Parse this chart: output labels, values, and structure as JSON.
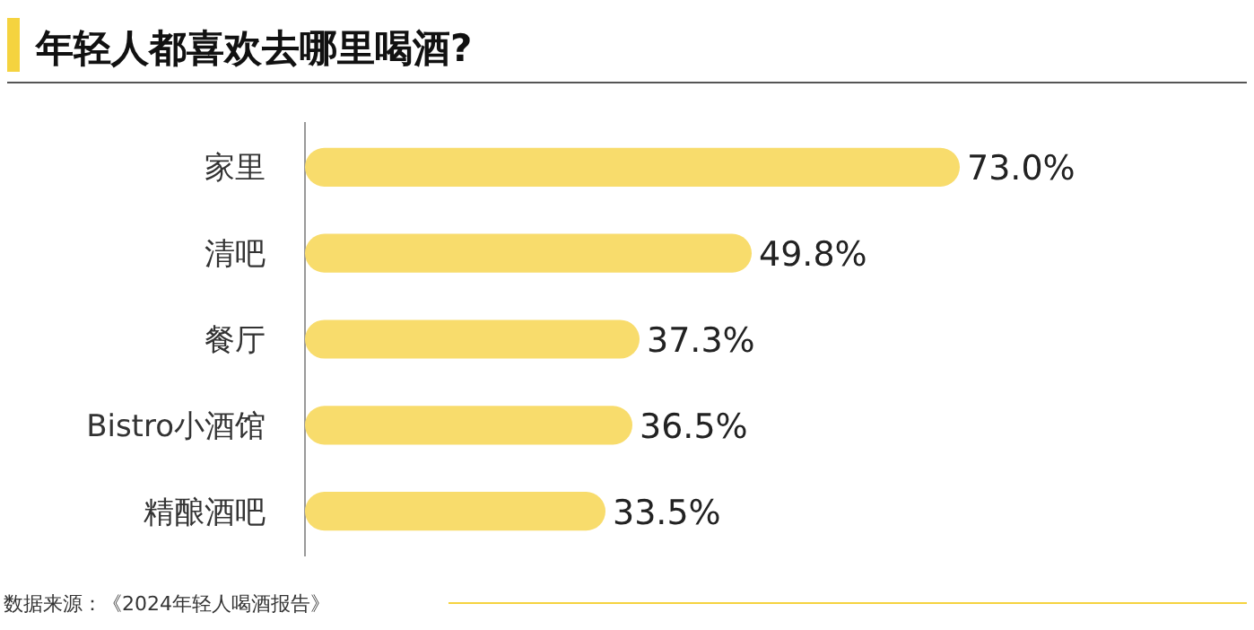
{
  "chart_data": {
    "type": "bar",
    "orientation": "horizontal",
    "title": "年轻人都喜欢去哪里喝酒?",
    "categories": [
      "家里",
      "清吧",
      "餐厅",
      "Bistro小酒馆",
      "精酿酒吧"
    ],
    "values": [
      73.0,
      49.8,
      37.3,
      36.5,
      33.5
    ],
    "value_labels": [
      "73.0%",
      "49.8%",
      "37.3%",
      "36.5%",
      "33.5%"
    ],
    "color": "#f8dc6c",
    "annotations": [
      "数据来源：《2024年轻人喝酒报告》"
    ]
  }
}
